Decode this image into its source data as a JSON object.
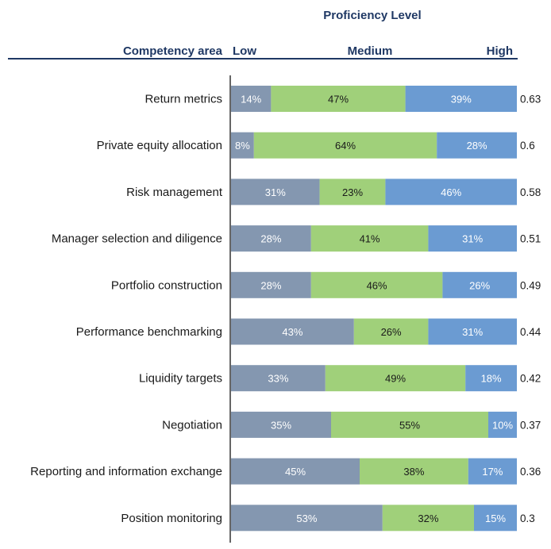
{
  "chart_data": {
    "type": "bar",
    "stacked": true,
    "orientation": "horizontal",
    "title": "Proficiency Level",
    "category_header": "Competency area",
    "level_headers": [
      "Low",
      "Medium",
      "High"
    ],
    "categories": [
      "Return metrics",
      "Private equity allocation",
      "Risk management",
      "Manager selection and diligence",
      "Portfolio construction",
      "Performance benchmarking",
      "Liquidity targets",
      "Negotiation",
      "Reporting and information exchange",
      "Position monitoring"
    ],
    "series": [
      {
        "values": [
          14,
          8,
          31,
          28,
          28,
          43,
          33,
          35,
          45,
          53
        ],
        "color": "#8497b0",
        "text_color": "#ffffff"
      },
      {
        "values": [
          47,
          64,
          23,
          41,
          46,
          26,
          49,
          55,
          38,
          32
        ],
        "color": "#a0d07a",
        "text_color": "#1a1a1a"
      },
      {
        "values": [
          39,
          28,
          46,
          31,
          26,
          31,
          18,
          10,
          17,
          15
        ],
        "color": "#6b9bd2",
        "text_color": "#ffffff"
      }
    ],
    "scores": [
      "0.63",
      "0.6",
      "0.58",
      "0.51",
      "0.49",
      "0.44",
      "0.42",
      "0.37",
      "0.36",
      "0.3"
    ],
    "value_suffix": "%",
    "xlim": [
      0,
      100
    ],
    "legend": "none",
    "grid": false,
    "header_color": "#1f3864"
  }
}
